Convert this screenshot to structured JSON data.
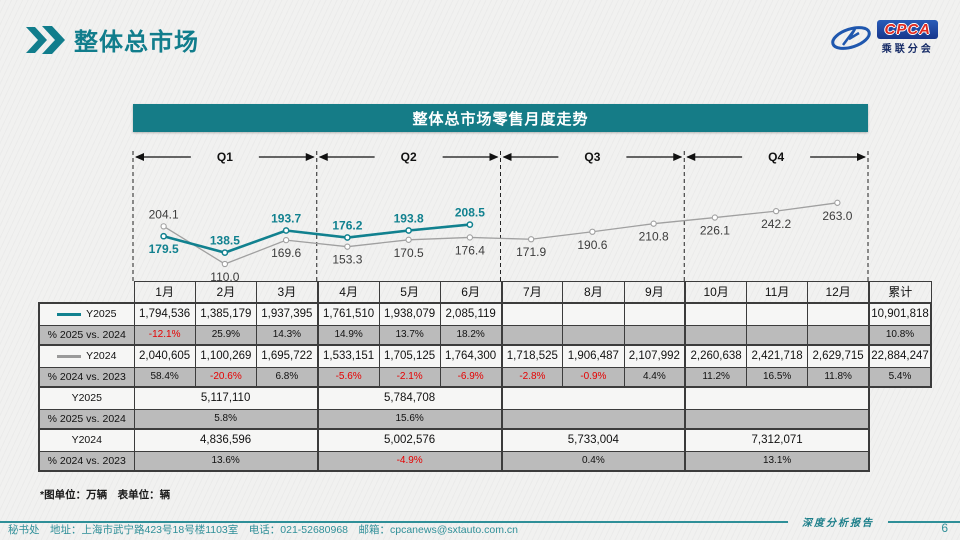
{
  "page": {
    "title": "整体总市场",
    "page_number": "6",
    "unit_note": "*图单位：万辆　表单位：辆",
    "contact": "秘书处　地址：上海市武宁路423号18号楼1103室　电话：021-52680968　邮箱：cpcanews@sxtauto.com.cn",
    "report_label": "深度分析报告"
  },
  "logo": {
    "text": "CPCA",
    "subtext": "乘联分会"
  },
  "chart": {
    "banner_title": "整体总市场零售月度走势",
    "quarters": [
      "Q1",
      "Q2",
      "Q3",
      "Q4"
    ]
  },
  "chart_data": {
    "type": "line",
    "title": "整体总市场零售月度走势",
    "x": [
      "1月",
      "2月",
      "3月",
      "4月",
      "5月",
      "6月",
      "7月",
      "8月",
      "9月",
      "10月",
      "11月",
      "12月"
    ],
    "unit": "万辆",
    "legend_position": "table-left",
    "grid": false,
    "ylim": [
      100,
      280
    ],
    "series": [
      {
        "name": "Y2025",
        "color": "#11818f",
        "values": [
          179.5,
          138.5,
          193.7,
          176.2,
          193.8,
          208.5,
          null,
          null,
          null,
          null,
          null,
          null
        ]
      },
      {
        "name": "Y2024",
        "color": "#a0a0a0",
        "values": [
          204.1,
          110.0,
          169.6,
          153.3,
          170.5,
          176.4,
          171.9,
          190.6,
          210.8,
          226.1,
          242.2,
          263.0
        ]
      }
    ]
  },
  "table": {
    "columns": [
      "1月",
      "2月",
      "3月",
      "4月",
      "5月",
      "6月",
      "7月",
      "8月",
      "9月",
      "10月",
      "11月",
      "12月",
      "累计"
    ],
    "monthly_rows": [
      {
        "label": "Y2025",
        "legend": "#11818f",
        "kind": "val",
        "cells": [
          "1,794,536",
          "1,385,179",
          "1,937,395",
          "1,761,510",
          "1,938,079",
          "2,085,119",
          "",
          "",
          "",
          "",
          "",
          "",
          "10,901,818"
        ]
      },
      {
        "label": "% 2025 vs. 2024",
        "kind": "pct",
        "cells": [
          "-12.1%",
          "25.9%",
          "14.3%",
          "14.9%",
          "13.7%",
          "18.2%",
          "",
          "",
          "",
          "",
          "",
          "",
          "10.8%"
        ]
      },
      {
        "label": "Y2024",
        "legend": "#9a9a9a",
        "kind": "val",
        "cells": [
          "2,040,605",
          "1,100,269",
          "1,695,722",
          "1,533,151",
          "1,705,125",
          "1,764,300",
          "1,718,525",
          "1,906,487",
          "2,107,992",
          "2,260,638",
          "2,421,718",
          "2,629,715",
          "22,884,247"
        ]
      },
      {
        "label": "% 2024 vs. 2023",
        "kind": "pct",
        "cells": [
          "58.4%",
          "-20.6%",
          "6.8%",
          "-5.6%",
          "-2.1%",
          "-6.9%",
          "-2.8%",
          "-0.9%",
          "4.4%",
          "11.2%",
          "16.5%",
          "11.8%",
          "5.4%"
        ]
      }
    ],
    "quarter_rows": [
      {
        "label": "Y2025",
        "kind": "val",
        "cells": [
          "5,117,110",
          "5,784,708",
          "",
          ""
        ]
      },
      {
        "label": "% 2025 vs. 2024",
        "kind": "pct",
        "cells": [
          "5.8%",
          "15.6%",
          "",
          ""
        ]
      },
      {
        "label": "Y2024",
        "kind": "val",
        "cells": [
          "4,836,596",
          "5,002,576",
          "5,733,004",
          "7,312,071"
        ]
      },
      {
        "label": "% 2024 vs. 2023",
        "kind": "pct",
        "cells": [
          "13.6%",
          "-4.9%",
          "0.4%",
          "13.1%"
        ]
      }
    ]
  }
}
